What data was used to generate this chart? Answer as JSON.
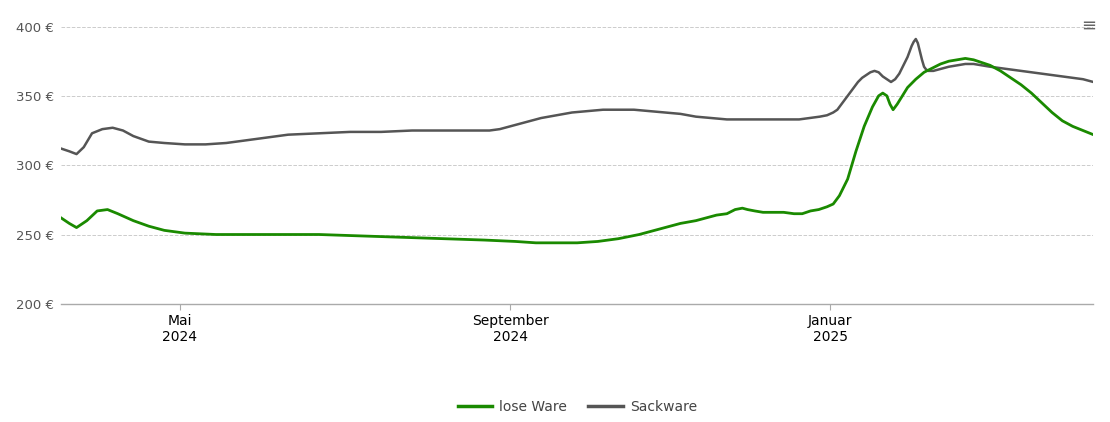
{
  "ylim": [
    200,
    410
  ],
  "yticks": [
    200,
    250,
    300,
    350,
    400
  ],
  "x_tick_labels": [
    [
      "Mai\n2024",
      0.115
    ],
    [
      "September\n2024",
      0.435
    ],
    [
      "Januar\n2025",
      0.745
    ]
  ],
  "background_color": "#ffffff",
  "grid_color": "#cccccc",
  "lose_ware_color": "#1a8a00",
  "sackware_color": "#555555",
  "lose_ware_label": "lose Ware",
  "sackware_label": "Sackware",
  "lose_ware": [
    0.0,
    262,
    0.008,
    258,
    0.015,
    255,
    0.025,
    260,
    0.035,
    267,
    0.045,
    268,
    0.055,
    265,
    0.07,
    260,
    0.085,
    256,
    0.1,
    253,
    0.12,
    251,
    0.15,
    250,
    0.18,
    250,
    0.21,
    250,
    0.25,
    250,
    0.29,
    249,
    0.33,
    248,
    0.37,
    247,
    0.41,
    246,
    0.44,
    245,
    0.46,
    244,
    0.48,
    244,
    0.5,
    244,
    0.52,
    245,
    0.54,
    247,
    0.56,
    250,
    0.58,
    254,
    0.6,
    258,
    0.615,
    260,
    0.625,
    262,
    0.635,
    264,
    0.645,
    265,
    0.653,
    268,
    0.66,
    269,
    0.665,
    268,
    0.672,
    267,
    0.68,
    266,
    0.69,
    266,
    0.7,
    266,
    0.71,
    265,
    0.718,
    265,
    0.726,
    267,
    0.734,
    268,
    0.742,
    270,
    0.748,
    272,
    0.754,
    278,
    0.762,
    290,
    0.77,
    310,
    0.778,
    328,
    0.786,
    342,
    0.792,
    350,
    0.796,
    352,
    0.8,
    350,
    0.803,
    344,
    0.806,
    340,
    0.81,
    344,
    0.815,
    350,
    0.82,
    356,
    0.828,
    362,
    0.836,
    367,
    0.844,
    370,
    0.852,
    373,
    0.86,
    375,
    0.868,
    376,
    0.876,
    377,
    0.884,
    376,
    0.892,
    374,
    0.9,
    372,
    0.91,
    368,
    0.92,
    363,
    0.93,
    358,
    0.94,
    352,
    0.95,
    345,
    0.96,
    338,
    0.97,
    332,
    0.98,
    328,
    0.99,
    325,
    1.0,
    322
  ],
  "sackware": [
    0.0,
    312,
    0.008,
    310,
    0.015,
    308,
    0.022,
    313,
    0.03,
    323,
    0.04,
    326,
    0.05,
    327,
    0.06,
    325,
    0.07,
    321,
    0.085,
    317,
    0.1,
    316,
    0.12,
    315,
    0.14,
    315,
    0.16,
    316,
    0.18,
    318,
    0.2,
    320,
    0.22,
    322,
    0.25,
    323,
    0.28,
    324,
    0.31,
    324,
    0.34,
    325,
    0.36,
    325,
    0.38,
    325,
    0.4,
    325,
    0.415,
    325,
    0.425,
    326,
    0.435,
    328,
    0.445,
    330,
    0.455,
    332,
    0.465,
    334,
    0.48,
    336,
    0.495,
    338,
    0.51,
    339,
    0.525,
    340,
    0.54,
    340,
    0.555,
    340,
    0.57,
    339,
    0.585,
    338,
    0.6,
    337,
    0.615,
    335,
    0.63,
    334,
    0.645,
    333,
    0.66,
    333,
    0.68,
    333,
    0.7,
    333,
    0.715,
    333,
    0.725,
    334,
    0.735,
    335,
    0.742,
    336,
    0.748,
    338,
    0.752,
    340,
    0.756,
    344,
    0.76,
    348,
    0.764,
    352,
    0.768,
    356,
    0.772,
    360,
    0.776,
    363,
    0.78,
    365,
    0.784,
    367,
    0.788,
    368,
    0.792,
    367,
    0.796,
    364,
    0.8,
    362,
    0.804,
    360,
    0.808,
    362,
    0.812,
    366,
    0.816,
    372,
    0.82,
    378,
    0.822,
    382,
    0.824,
    386,
    0.826,
    389,
    0.828,
    391,
    0.83,
    388,
    0.832,
    382,
    0.834,
    376,
    0.836,
    371,
    0.838,
    369,
    0.84,
    368,
    0.845,
    368,
    0.85,
    369,
    0.855,
    370,
    0.86,
    371,
    0.868,
    372,
    0.876,
    373,
    0.884,
    373,
    0.892,
    372,
    0.9,
    371,
    0.91,
    370,
    0.92,
    369,
    0.93,
    368,
    0.94,
    367,
    0.95,
    366,
    0.96,
    365,
    0.97,
    364,
    0.98,
    363,
    0.99,
    362,
    1.0,
    360
  ]
}
